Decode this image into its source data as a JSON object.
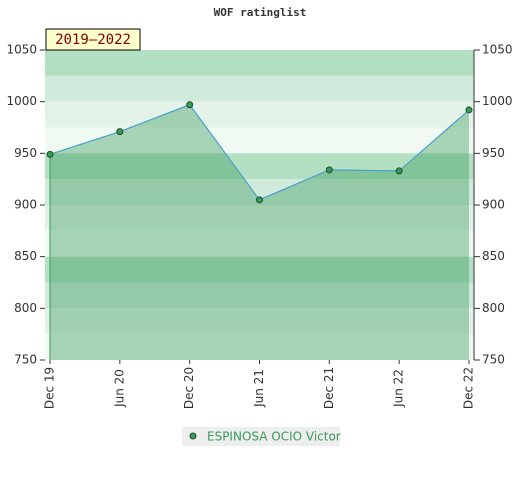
{
  "chart_data": {
    "type": "area",
    "title": "WOF ratinglist",
    "badge": "2019–2022",
    "categories": [
      "Dec 19",
      "Jun 20",
      "Dec 20",
      "Jun 21",
      "Dec 21",
      "Jun 22",
      "Dec 22"
    ],
    "series": [
      {
        "name": "ESPINOSA OCIO Victor",
        "color": "#3a9a5a",
        "values": [
          949,
          971,
          997,
          905,
          934,
          933,
          992
        ]
      }
    ],
    "ylim": [
      750,
      1050
    ],
    "yticks": [
      750,
      800,
      850,
      900,
      950,
      1000,
      1050
    ],
    "y2lim": [
      750,
      1050
    ],
    "y2ticks": [
      750,
      800,
      850,
      900,
      950,
      1000,
      1050
    ]
  }
}
